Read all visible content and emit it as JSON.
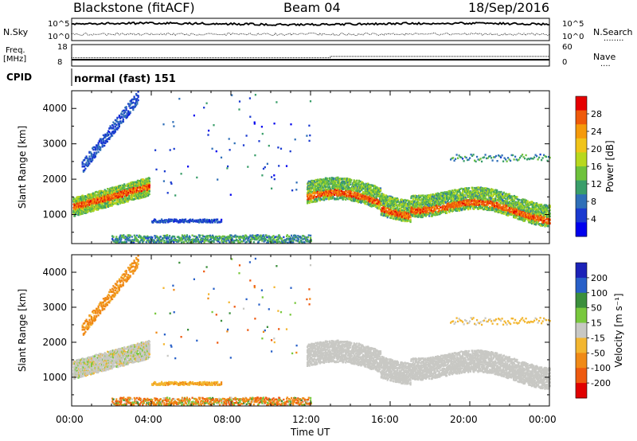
{
  "header": {
    "station": "Blackstone (fitACF)",
    "beam": "Beam 04",
    "date": "18/Sep/2016"
  },
  "noise_panel": {
    "left_label": "N.Sky",
    "right_label": "N.Search",
    "right_dots": "........",
    "left_ticks": [
      "10^5",
      "10^0"
    ],
    "right_ticks": [
      "10^5",
      "10^0"
    ]
  },
  "freq_panel": {
    "left_label_1": "Freq.",
    "left_label_2": "[MHz]",
    "right_label": "Nave",
    "right_dots": "....",
    "left_ticks": [
      "18",
      "8"
    ],
    "right_ticks": [
      "60",
      "0"
    ],
    "freq_value_before": 10.3,
    "freq_value_after": 10.3,
    "nave_value_before": 20,
    "nave_value_after": 25,
    "nave_step_time": 13.0
  },
  "cpid": {
    "label": "CPID",
    "mode": "normal (fast) 151"
  },
  "power_panel": {
    "ylabel": "Slant Range [km]",
    "colorbar_label": "Power [dB]",
    "colorbar_ticks": [
      "28",
      "24",
      "20",
      "16",
      "12",
      "8",
      "4"
    ],
    "colorbar_colors": [
      "#0000ee",
      "#1a3ad0",
      "#2f6fb8",
      "#3a9e6a",
      "#6ec23c",
      "#b8d81e",
      "#f0c419",
      "#f59a0b",
      "#ef5a0a",
      "#e60000"
    ]
  },
  "velocity_panel": {
    "ylabel": "Slant Range [km]",
    "colorbar_label": "Velocity [m s⁻¹]",
    "colorbar_ticks": [
      "200",
      "100",
      "50",
      "15",
      "-15",
      "-50",
      "-100",
      "-200"
    ],
    "colorbar_colors": [
      "#1c22b8",
      "#2860c8",
      "#3b8f3c",
      "#79c83d",
      "#c8c8c4",
      "#f3b630",
      "#f08a17",
      "#ee5a10",
      "#e00000"
    ]
  },
  "x_axis": {
    "label": "Time UT",
    "ticks": [
      "00:00",
      "04:00",
      "08:00",
      "12:00",
      "16:00",
      "20:00",
      "00:00"
    ]
  },
  "chart_data": {
    "type": "heatmap",
    "title": "Blackstone (fitACF)",
    "subtitle": "Beam 04",
    "xlabel": "Time UT",
    "ylabel": "Slant Range [km]",
    "xlim": [
      "00:00",
      "24:00"
    ],
    "ylim": [
      180,
      4500
    ],
    "power_clim": [
      0,
      32
    ],
    "velocity_clim": [
      -250,
      250
    ],
    "features": [
      {
        "name": "ionospheric scatter band",
        "time_start": 0.0,
        "time_end": 4.2,
        "range_start": 1100,
        "range_end": 2000,
        "power": 26,
        "velocity": -5
      },
      {
        "name": "rising upper band",
        "time_start": 0.5,
        "time_end": 3.3,
        "range_start": 2250,
        "range_end": 4300,
        "power": 6,
        "velocity": -60
      },
      {
        "name": "mid-range patch",
        "time_start": 4.0,
        "time_end": 7.5,
        "range_start": 780,
        "range_end": 920,
        "power": 5,
        "velocity": -40
      },
      {
        "name": "near-range ground clutter",
        "time_start": 2.0,
        "time_end": 12.0,
        "range_start": 180,
        "range_end": 400,
        "power": 10,
        "velocity": -60
      },
      {
        "name": "afternoon scatter band",
        "time_start": 11.8,
        "time_end": 24.0,
        "range_start": 1000,
        "range_end": 1800,
        "power": 26,
        "velocity": 5
      },
      {
        "name": "upper faint scatter",
        "time_start": 19.0,
        "time_end": 24.0,
        "range_start": 2450,
        "range_end": 2750,
        "power": 8,
        "velocity": -15
      }
    ]
  }
}
